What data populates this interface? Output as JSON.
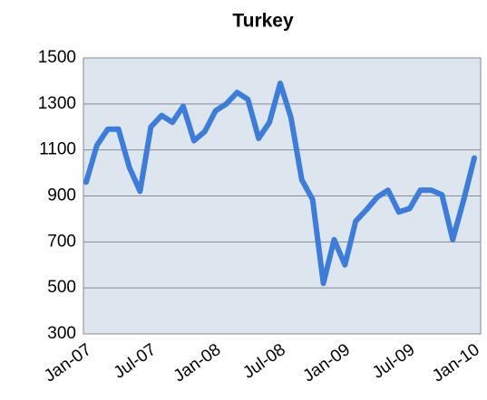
{
  "chart_data": {
    "type": "line",
    "title": "Turkey",
    "categories": [
      "Jan-07",
      null,
      null,
      null,
      null,
      null,
      "Jul-07",
      null,
      null,
      null,
      null,
      null,
      "Jan-08",
      null,
      null,
      null,
      null,
      null,
      "Jul-08",
      null,
      null,
      null,
      null,
      null,
      "Jan-09",
      null,
      null,
      null,
      null,
      null,
      "Jul-09",
      null,
      null,
      null,
      null,
      null,
      "Jan-10"
    ],
    "series": [
      {
        "name": "Turkey",
        "color": "#3c7ddb",
        "values": [
          960,
          1120,
          1190,
          1190,
          1025,
          920,
          1200,
          1250,
          1220,
          1290,
          1140,
          1180,
          1270,
          1300,
          1350,
          1320,
          1150,
          1220,
          1390,
          1240,
          970,
          885,
          520,
          710,
          600,
          790,
          840,
          895,
          925,
          830,
          845,
          925,
          925,
          905,
          710,
          880,
          1065
        ]
      }
    ],
    "ylim": [
      300,
      1500
    ],
    "yticks": [
      300,
      500,
      700,
      900,
      1100,
      1300,
      1500
    ],
    "grid": true
  }
}
